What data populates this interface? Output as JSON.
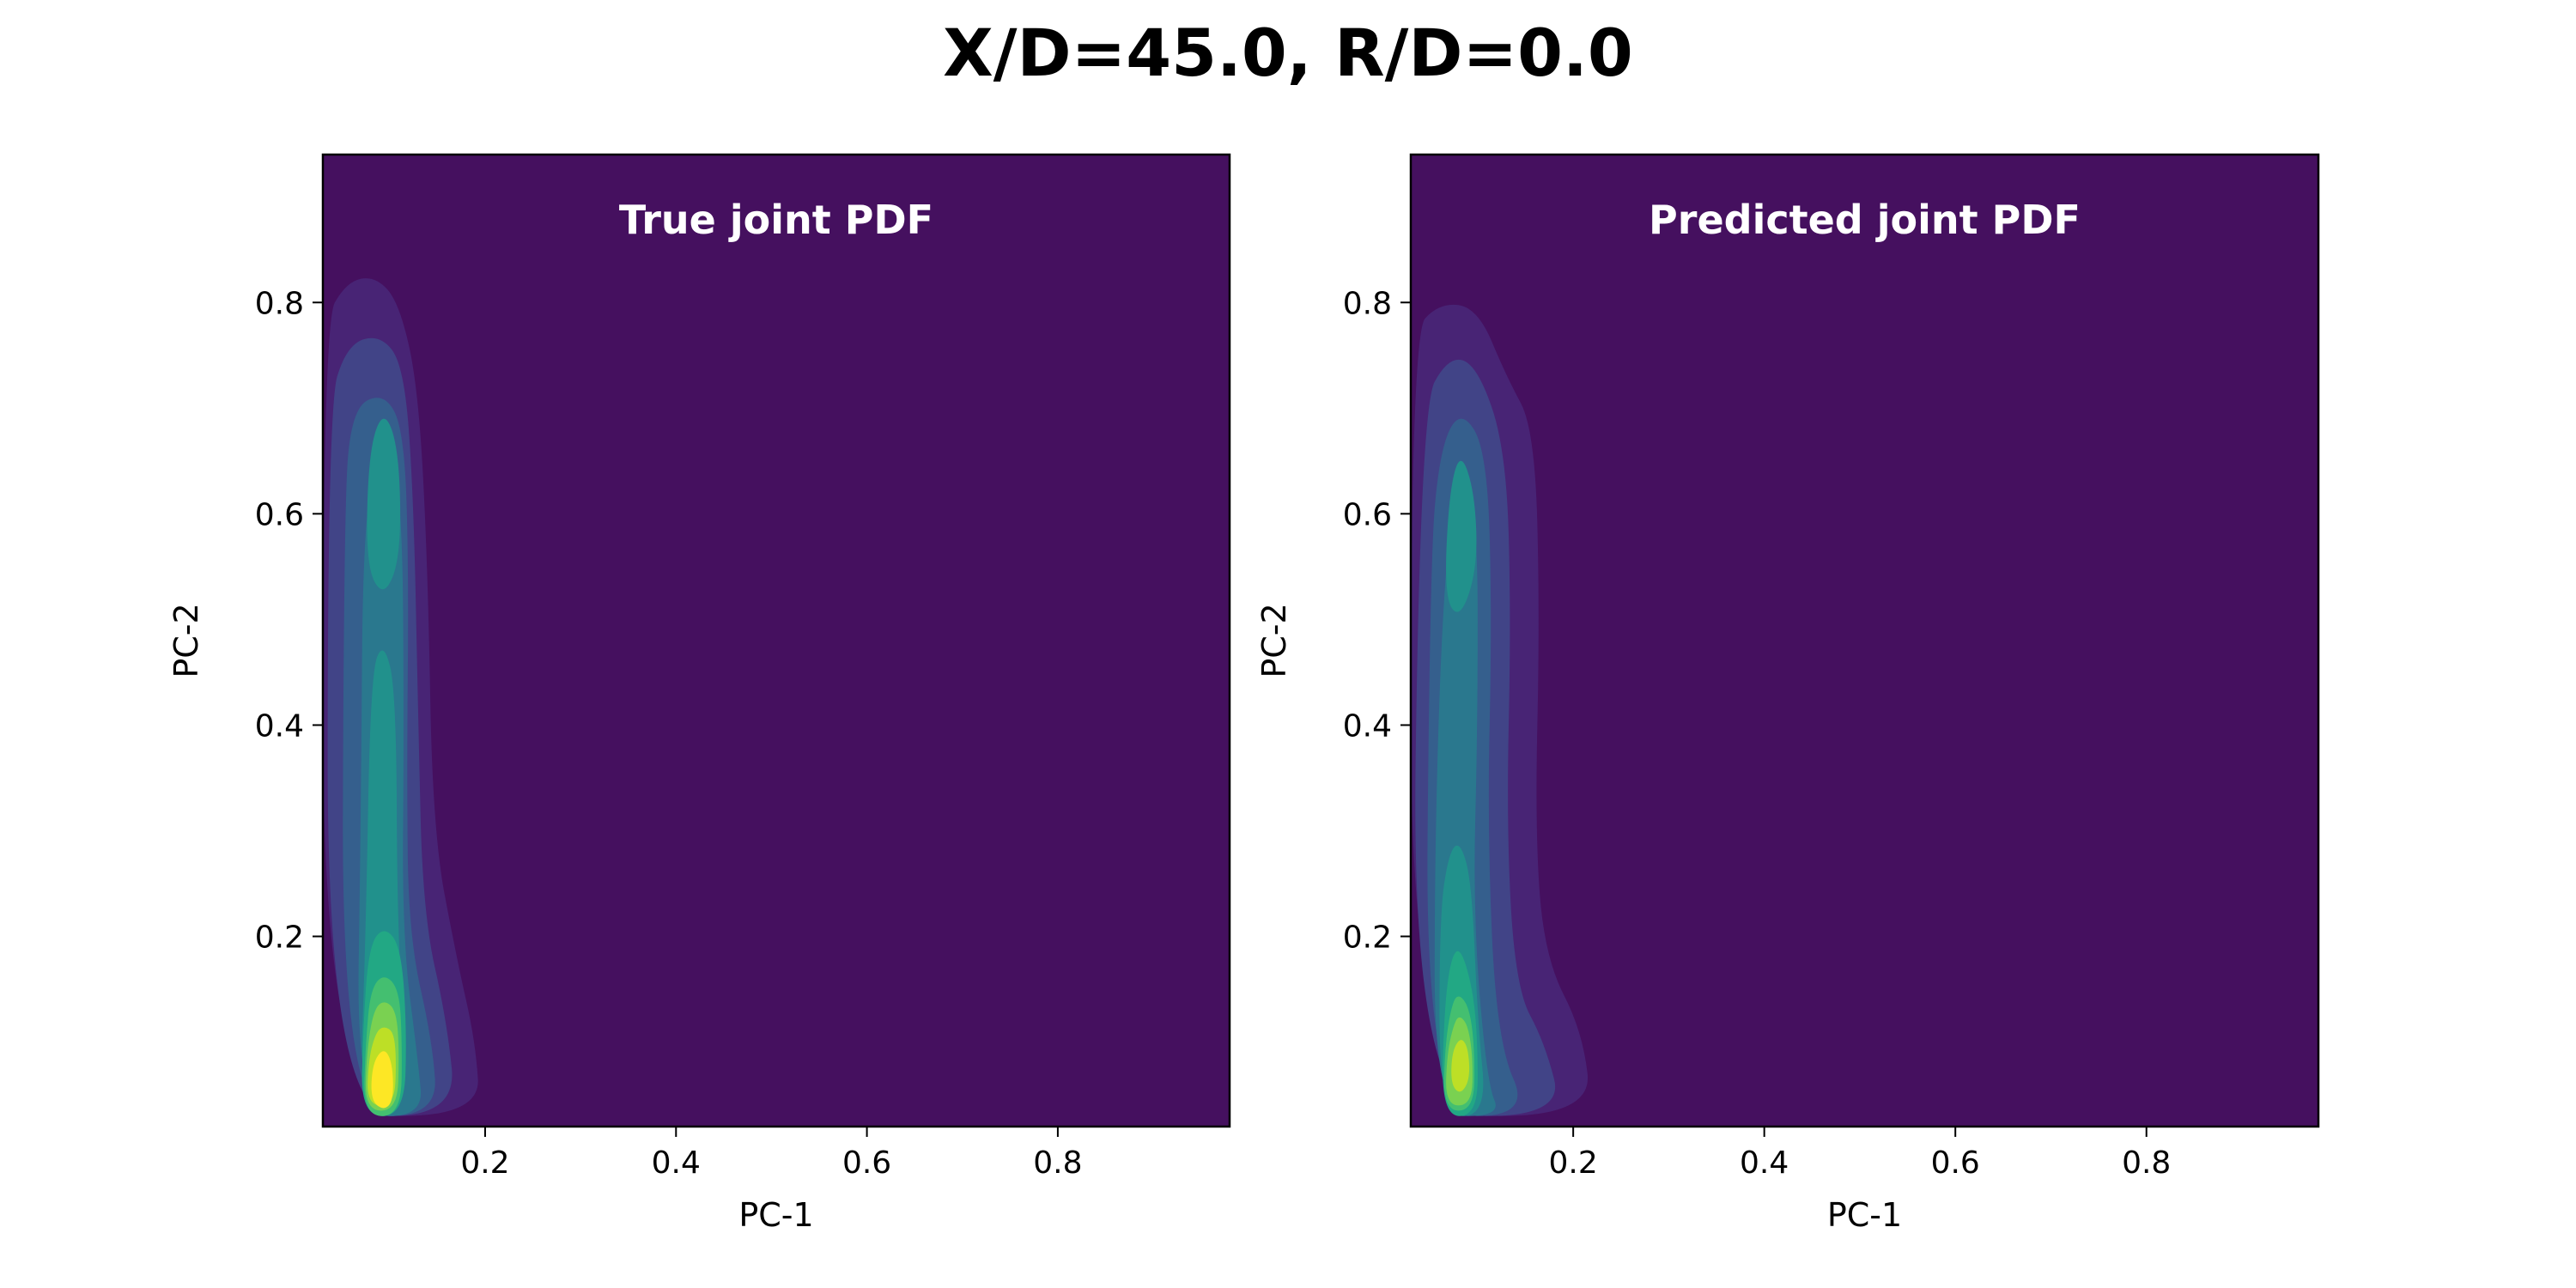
{
  "figure": {
    "title": "X/D=45.0, R/D=0.0"
  },
  "colormap": {
    "name": "viridis",
    "levels": [
      "#45105f",
      "#482475",
      "#414487",
      "#355f8d",
      "#2a788e",
      "#21918c",
      "#22a884",
      "#44bf70",
      "#7ad151",
      "#bddf26",
      "#fde725"
    ]
  },
  "chart_data": [
    {
      "type": "heatmap",
      "subtype": "filled-contour",
      "title": "True joint PDF",
      "xlabel": "PC-1",
      "ylabel": "PC-2",
      "xlim": [
        0.03,
        0.98
      ],
      "ylim": [
        0.02,
        0.94
      ],
      "xticks": [
        0.2,
        0.4,
        0.6,
        0.8
      ],
      "yticks": [
        0.2,
        0.4,
        0.6,
        0.8
      ],
      "xtick_labels": [
        "0.2",
        "0.4",
        "0.6",
        "0.8"
      ],
      "ytick_labels": [
        "0.2",
        "0.4",
        "0.6",
        "0.8"
      ],
      "density_peaks": [
        {
          "pc1": 0.094,
          "pc2": 0.07,
          "level": 10
        },
        {
          "pc1": 0.094,
          "pc2": 0.64,
          "level": 5
        }
      ],
      "contours": [
        {
          "level": 1,
          "points": [
            [
              0.03,
              0.03
            ],
            [
              0.03,
              0.78
            ],
            [
              0.055,
              0.82
            ],
            [
              0.085,
              0.825
            ],
            [
              0.11,
              0.8
            ],
            [
              0.13,
              0.72
            ],
            [
              0.14,
              0.55
            ],
            [
              0.145,
              0.3
            ],
            [
              0.17,
              0.18
            ],
            [
              0.19,
              0.1
            ],
            [
              0.195,
              0.03
            ]
          ]
        },
        {
          "level": 2,
          "points": [
            [
              0.035,
              0.03
            ],
            [
              0.035,
              0.7
            ],
            [
              0.055,
              0.76
            ],
            [
              0.09,
              0.77
            ],
            [
              0.115,
              0.74
            ],
            [
              0.125,
              0.62
            ],
            [
              0.13,
              0.4
            ],
            [
              0.135,
              0.22
            ],
            [
              0.16,
              0.12
            ],
            [
              0.17,
              0.03
            ]
          ]
        },
        {
          "level": 3,
          "points": [
            [
              0.05,
              0.03
            ],
            [
              0.052,
              0.6
            ],
            [
              0.06,
              0.7
            ],
            [
              0.094,
              0.715
            ],
            [
              0.115,
              0.68
            ],
            [
              0.12,
              0.55
            ],
            [
              0.118,
              0.35
            ],
            [
              0.12,
              0.2
            ],
            [
              0.145,
              0.1
            ],
            [
              0.15,
              0.03
            ]
          ]
        },
        {
          "level": 4,
          "points": [
            [
              0.065,
              0.03
            ],
            [
              0.07,
              0.32
            ],
            [
              0.072,
              0.6
            ],
            [
              0.094,
              0.68
            ],
            [
              0.113,
              0.62
            ],
            [
              0.115,
              0.4
            ],
            [
              0.113,
              0.2
            ],
            [
              0.13,
              0.08
            ],
            [
              0.135,
              0.03
            ]
          ]
        },
        {
          "level": 5,
          "points": [
            [
              0.068,
              0.03
            ],
            [
              0.075,
              0.2
            ],
            [
              0.08,
              0.45
            ],
            [
              0.094,
              0.48
            ],
            [
              0.107,
              0.43
            ],
            [
              0.108,
              0.2
            ],
            [
              0.12,
              0.03
            ]
          ]
        },
        {
          "level": 5,
          "points": [
            [
              0.075,
              0.55
            ],
            [
              0.078,
              0.66
            ],
            [
              0.094,
              0.7
            ],
            [
              0.11,
              0.66
            ],
            [
              0.112,
              0.56
            ],
            [
              0.094,
              0.52
            ]
          ]
        },
        {
          "level": 6,
          "points": [
            [
              0.07,
              0.03
            ],
            [
              0.072,
              0.11
            ],
            [
              0.078,
              0.19
            ],
            [
              0.094,
              0.21
            ],
            [
              0.112,
              0.19
            ],
            [
              0.118,
              0.11
            ],
            [
              0.115,
              0.03
            ]
          ]
        },
        {
          "level": 7,
          "points": [
            [
              0.072,
              0.03
            ],
            [
              0.075,
              0.1
            ],
            [
              0.08,
              0.15
            ],
            [
              0.094,
              0.165
            ],
            [
              0.11,
              0.15
            ],
            [
              0.113,
              0.1
            ],
            [
              0.112,
              0.03
            ]
          ]
        },
        {
          "level": 8,
          "points": [
            [
              0.074,
              0.035
            ],
            [
              0.076,
              0.09
            ],
            [
              0.083,
              0.13
            ],
            [
              0.094,
              0.14
            ],
            [
              0.107,
              0.13
            ],
            [
              0.11,
              0.09
            ],
            [
              0.108,
              0.035
            ]
          ]
        },
        {
          "level": 9,
          "points": [
            [
              0.076,
              0.04
            ],
            [
              0.078,
              0.085
            ],
            [
              0.086,
              0.11
            ],
            [
              0.094,
              0.115
            ],
            [
              0.104,
              0.11
            ],
            [
              0.107,
              0.085
            ],
            [
              0.105,
              0.04
            ]
          ]
        },
        {
          "level": 10,
          "points": [
            [
              0.08,
              0.045
            ],
            [
              0.082,
              0.08
            ],
            [
              0.094,
              0.095
            ],
            [
              0.103,
              0.08
            ],
            [
              0.104,
              0.045
            ],
            [
              0.094,
              0.035
            ]
          ]
        }
      ]
    },
    {
      "type": "heatmap",
      "subtype": "filled-contour",
      "title": "Predicted joint PDF",
      "xlabel": "PC-1",
      "ylabel": "PC-2",
      "xlim": [
        0.03,
        0.98
      ],
      "ylim": [
        0.02,
        0.94
      ],
      "xticks": [
        0.2,
        0.4,
        0.6,
        0.8
      ],
      "yticks": [
        0.2,
        0.4,
        0.6,
        0.8
      ],
      "xtick_labels": [
        "0.2",
        "0.4",
        "0.6",
        "0.8"
      ],
      "ytick_labels": [
        "0.2",
        "0.4",
        "0.6",
        "0.8"
      ],
      "density_peaks": [
        {
          "pc1": 0.082,
          "pc2": 0.08,
          "level": 9
        },
        {
          "pc1": 0.082,
          "pc2": 0.61,
          "level": 5
        }
      ],
      "contours": [
        {
          "level": 1,
          "points": [
            [
              0.03,
              0.03
            ],
            [
              0.03,
              0.77
            ],
            [
              0.06,
              0.8
            ],
            [
              0.1,
              0.795
            ],
            [
              0.13,
              0.73
            ],
            [
              0.16,
              0.68
            ],
            [
              0.165,
              0.5
            ],
            [
              0.16,
              0.3
            ],
            [
              0.17,
              0.18
            ],
            [
              0.21,
              0.11
            ],
            [
              0.22,
              0.03
            ]
          ]
        },
        {
          "level": 2,
          "points": [
            [
              0.03,
              0.03
            ],
            [
              0.04,
              0.7
            ],
            [
              0.07,
              0.75
            ],
            [
              0.1,
              0.74
            ],
            [
              0.13,
              0.66
            ],
            [
              0.135,
              0.5
            ],
            [
              0.13,
              0.3
            ],
            [
              0.14,
              0.15
            ],
            [
              0.17,
              0.1
            ],
            [
              0.19,
              0.03
            ]
          ]
        },
        {
          "level": 3,
          "points": [
            [
              0.045,
              0.03
            ],
            [
              0.05,
              0.55
            ],
            [
              0.06,
              0.66
            ],
            [
              0.082,
              0.7
            ],
            [
              0.11,
              0.66
            ],
            [
              0.115,
              0.5
            ],
            [
              0.11,
              0.3
            ],
            [
              0.12,
              0.1
            ],
            [
              0.155,
              0.03
            ]
          ]
        },
        {
          "level": 4,
          "points": [
            [
              0.055,
              0.03
            ],
            [
              0.055,
              0.3
            ],
            [
              0.065,
              0.55
            ],
            [
              0.082,
              0.65
            ],
            [
              0.1,
              0.6
            ],
            [
              0.1,
              0.4
            ],
            [
              0.095,
              0.22
            ],
            [
              0.11,
              0.06
            ],
            [
              0.125,
              0.03
            ]
          ]
        },
        {
          "level": 5,
          "points": [
            [
              0.06,
              0.03
            ],
            [
              0.06,
              0.22
            ],
            [
              0.07,
              0.28
            ],
            [
              0.082,
              0.29
            ],
            [
              0.094,
              0.25
            ],
            [
              0.1,
              0.12
            ],
            [
              0.11,
              0.03
            ]
          ]
        },
        {
          "level": 5,
          "points": [
            [
              0.065,
              0.52
            ],
            [
              0.07,
              0.62
            ],
            [
              0.082,
              0.66
            ],
            [
              0.097,
              0.62
            ],
            [
              0.1,
              0.55
            ],
            [
              0.082,
              0.5
            ]
          ]
        },
        {
          "level": 6,
          "points": [
            [
              0.062,
              0.03
            ],
            [
              0.065,
              0.13
            ],
            [
              0.072,
              0.18
            ],
            [
              0.082,
              0.19
            ],
            [
              0.095,
              0.15
            ],
            [
              0.1,
              0.1
            ],
            [
              0.1,
              0.03
            ]
          ]
        },
        {
          "level": 7,
          "points": [
            [
              0.064,
              0.035
            ],
            [
              0.066,
              0.1
            ],
            [
              0.074,
              0.14
            ],
            [
              0.082,
              0.145
            ],
            [
              0.092,
              0.13
            ],
            [
              0.097,
              0.09
            ],
            [
              0.096,
              0.035
            ]
          ]
        },
        {
          "level": 8,
          "points": [
            [
              0.066,
              0.04
            ],
            [
              0.068,
              0.09
            ],
            [
              0.076,
              0.12
            ],
            [
              0.082,
              0.125
            ],
            [
              0.09,
              0.115
            ],
            [
              0.095,
              0.085
            ],
            [
              0.094,
              0.04
            ]
          ]
        },
        {
          "level": 9,
          "points": [
            [
              0.072,
              0.06
            ],
            [
              0.073,
              0.09
            ],
            [
              0.082,
              0.105
            ],
            [
              0.09,
              0.095
            ],
            [
              0.092,
              0.065
            ],
            [
              0.082,
              0.05
            ]
          ]
        }
      ]
    }
  ]
}
